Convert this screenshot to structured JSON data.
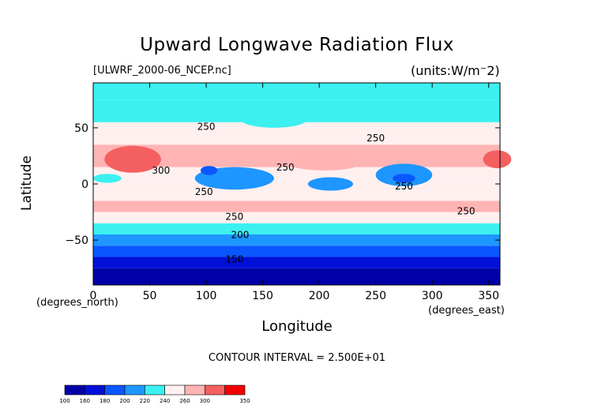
{
  "header": {
    "title": "Upward Longwave Radiation Flux",
    "file": "[ULWRF_2000-06_NCEP.nc]",
    "units": "(units:W/m⁻2)"
  },
  "axes": {
    "xlabel": "Longitude",
    "ylabel": "Latitude",
    "xunits": "(degrees_east)",
    "yunits": "(degrees_north)",
    "contour_interval": "CONTOUR INTERVAL = 2.500E+01"
  },
  "chart_data": {
    "type": "heatmap",
    "title": "Upward Longwave Radiation Flux",
    "xlabel": "Longitude",
    "ylabel": "Latitude",
    "xlim": [
      0,
      360
    ],
    "ylim": [
      -90,
      90
    ],
    "xticks": [
      0,
      50,
      100,
      150,
      200,
      250,
      300,
      350
    ],
    "yticks": [
      -50,
      0,
      50
    ],
    "contour_interval": 25,
    "contour_labels": [
      {
        "lon": 100,
        "lat": 48,
        "text": "250"
      },
      {
        "lon": 170,
        "lat": 12,
        "text": "250"
      },
      {
        "lon": 250,
        "lat": 38,
        "text": "250"
      },
      {
        "lon": 60,
        "lat": 9,
        "text": "300"
      },
      {
        "lon": 98,
        "lat": -10,
        "text": "250"
      },
      {
        "lon": 125,
        "lat": -32,
        "text": "250"
      },
      {
        "lon": 275,
        "lat": -5,
        "text": "250"
      },
      {
        "lon": 330,
        "lat": -27,
        "text": "250"
      },
      {
        "lon": 130,
        "lat": -48,
        "text": "200"
      },
      {
        "lon": 125,
        "lat": -70,
        "text": "150"
      }
    ],
    "zonal_profile": {
      "lat": [
        -90,
        -75,
        -65,
        -55,
        -45,
        -35,
        -25,
        -15,
        -5,
        5,
        15,
        25,
        35,
        45,
        55,
        65,
        75,
        90
      ],
      "value": [
        145,
        160,
        182,
        200,
        212,
        238,
        262,
        268,
        245,
        235,
        265,
        275,
        262,
        245,
        238,
        225,
        220,
        222
      ]
    },
    "colorbar": {
      "levels": [
        "100",
        "160",
        "180",
        "200",
        "220",
        "240",
        "260",
        "300",
        "350"
      ],
      "colors": [
        "#0000a8",
        "#0010d8",
        "#0a56ff",
        "#1e96ff",
        "#3cf0f0",
        "#fff0f0",
        "#ffb4b4",
        "#f46060",
        "#f20000"
      ]
    }
  }
}
